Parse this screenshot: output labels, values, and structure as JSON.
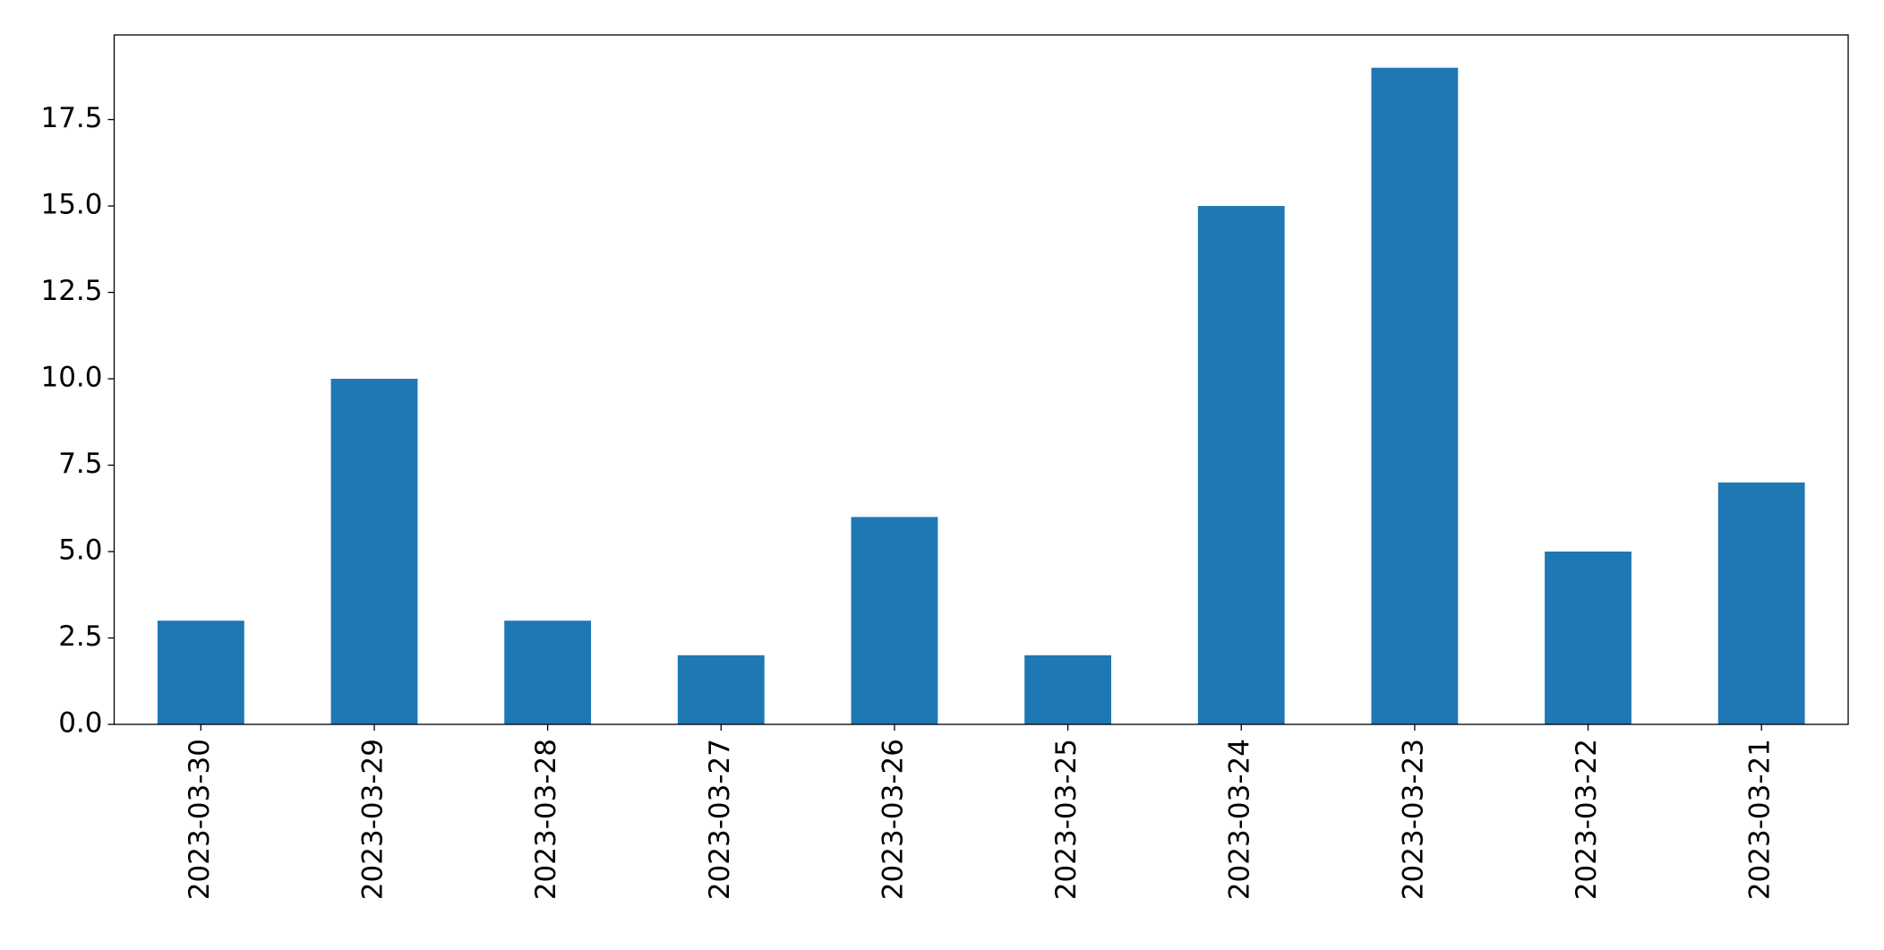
{
  "chart_data": {
    "type": "bar",
    "categories": [
      "2023-03-30",
      "2023-03-29",
      "2023-03-28",
      "2023-03-27",
      "2023-03-26",
      "2023-03-25",
      "2023-03-24",
      "2023-03-23",
      "2023-03-22",
      "2023-03-21"
    ],
    "values": [
      3,
      10,
      3,
      2,
      6,
      2,
      15,
      19,
      5,
      7
    ],
    "color": "#1f77b4",
    "ylim": [
      0,
      19.95
    ],
    "yticks": [
      {
        "value": 0,
        "label": "0.0"
      },
      {
        "value": 2.5,
        "label": "2.5"
      },
      {
        "value": 5,
        "label": "5.0"
      },
      {
        "value": 7.5,
        "label": "7.5"
      },
      {
        "value": 10,
        "label": "10.0"
      },
      {
        "value": 12.5,
        "label": "12.5"
      },
      {
        "value": 15,
        "label": "15.0"
      },
      {
        "value": 17.5,
        "label": "17.5"
      }
    ],
    "grid": false
  }
}
